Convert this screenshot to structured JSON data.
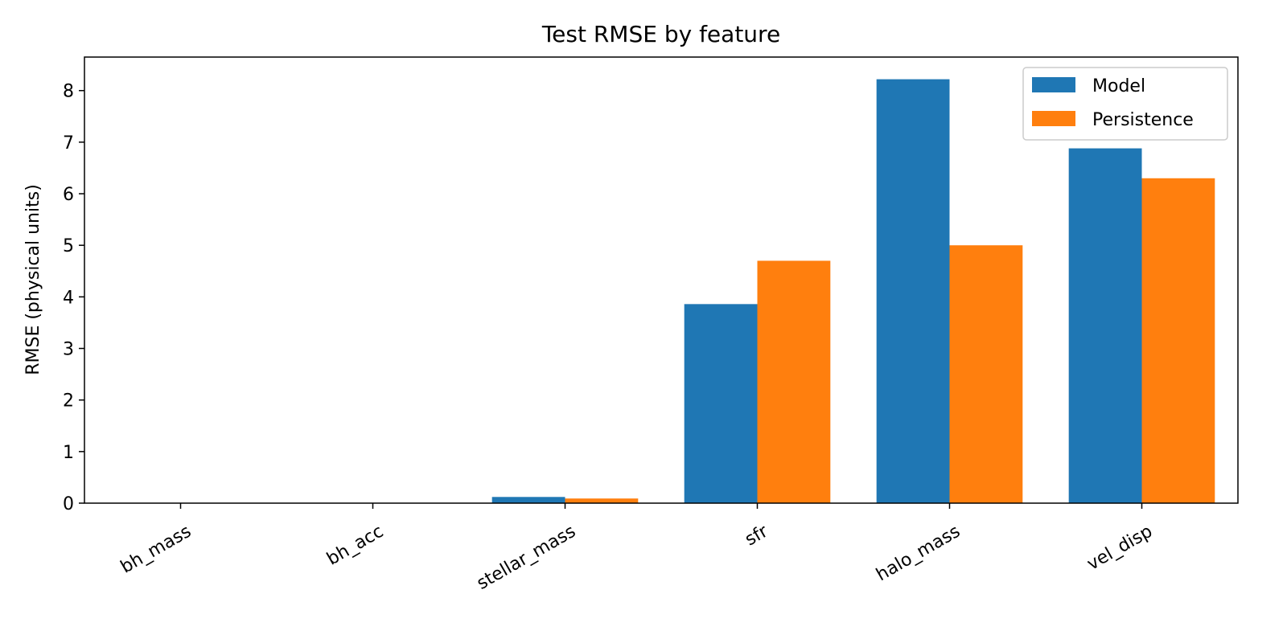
{
  "chart_data": {
    "type": "bar",
    "title": "Test RMSE by feature",
    "xlabel": "",
    "ylabel": "RMSE (physical units)",
    "ylim": [
      0,
      8.65
    ],
    "yticks": [
      0,
      1,
      2,
      3,
      4,
      5,
      6,
      7,
      8
    ],
    "categories": [
      "bh_mass",
      "bh_acc",
      "stellar_mass",
      "sfr",
      "halo_mass",
      "vel_disp"
    ],
    "series": [
      {
        "name": "Model",
        "color": "#1f77b4",
        "values": [
          0.0,
          0.0,
          0.12,
          3.86,
          8.22,
          6.88
        ]
      },
      {
        "name": "Persistence",
        "color": "#ff7f0e",
        "values": [
          0.0,
          0.0,
          0.09,
          4.7,
          5.0,
          6.3
        ]
      }
    ],
    "legend": {
      "position": "top-right"
    },
    "grid": false
  }
}
